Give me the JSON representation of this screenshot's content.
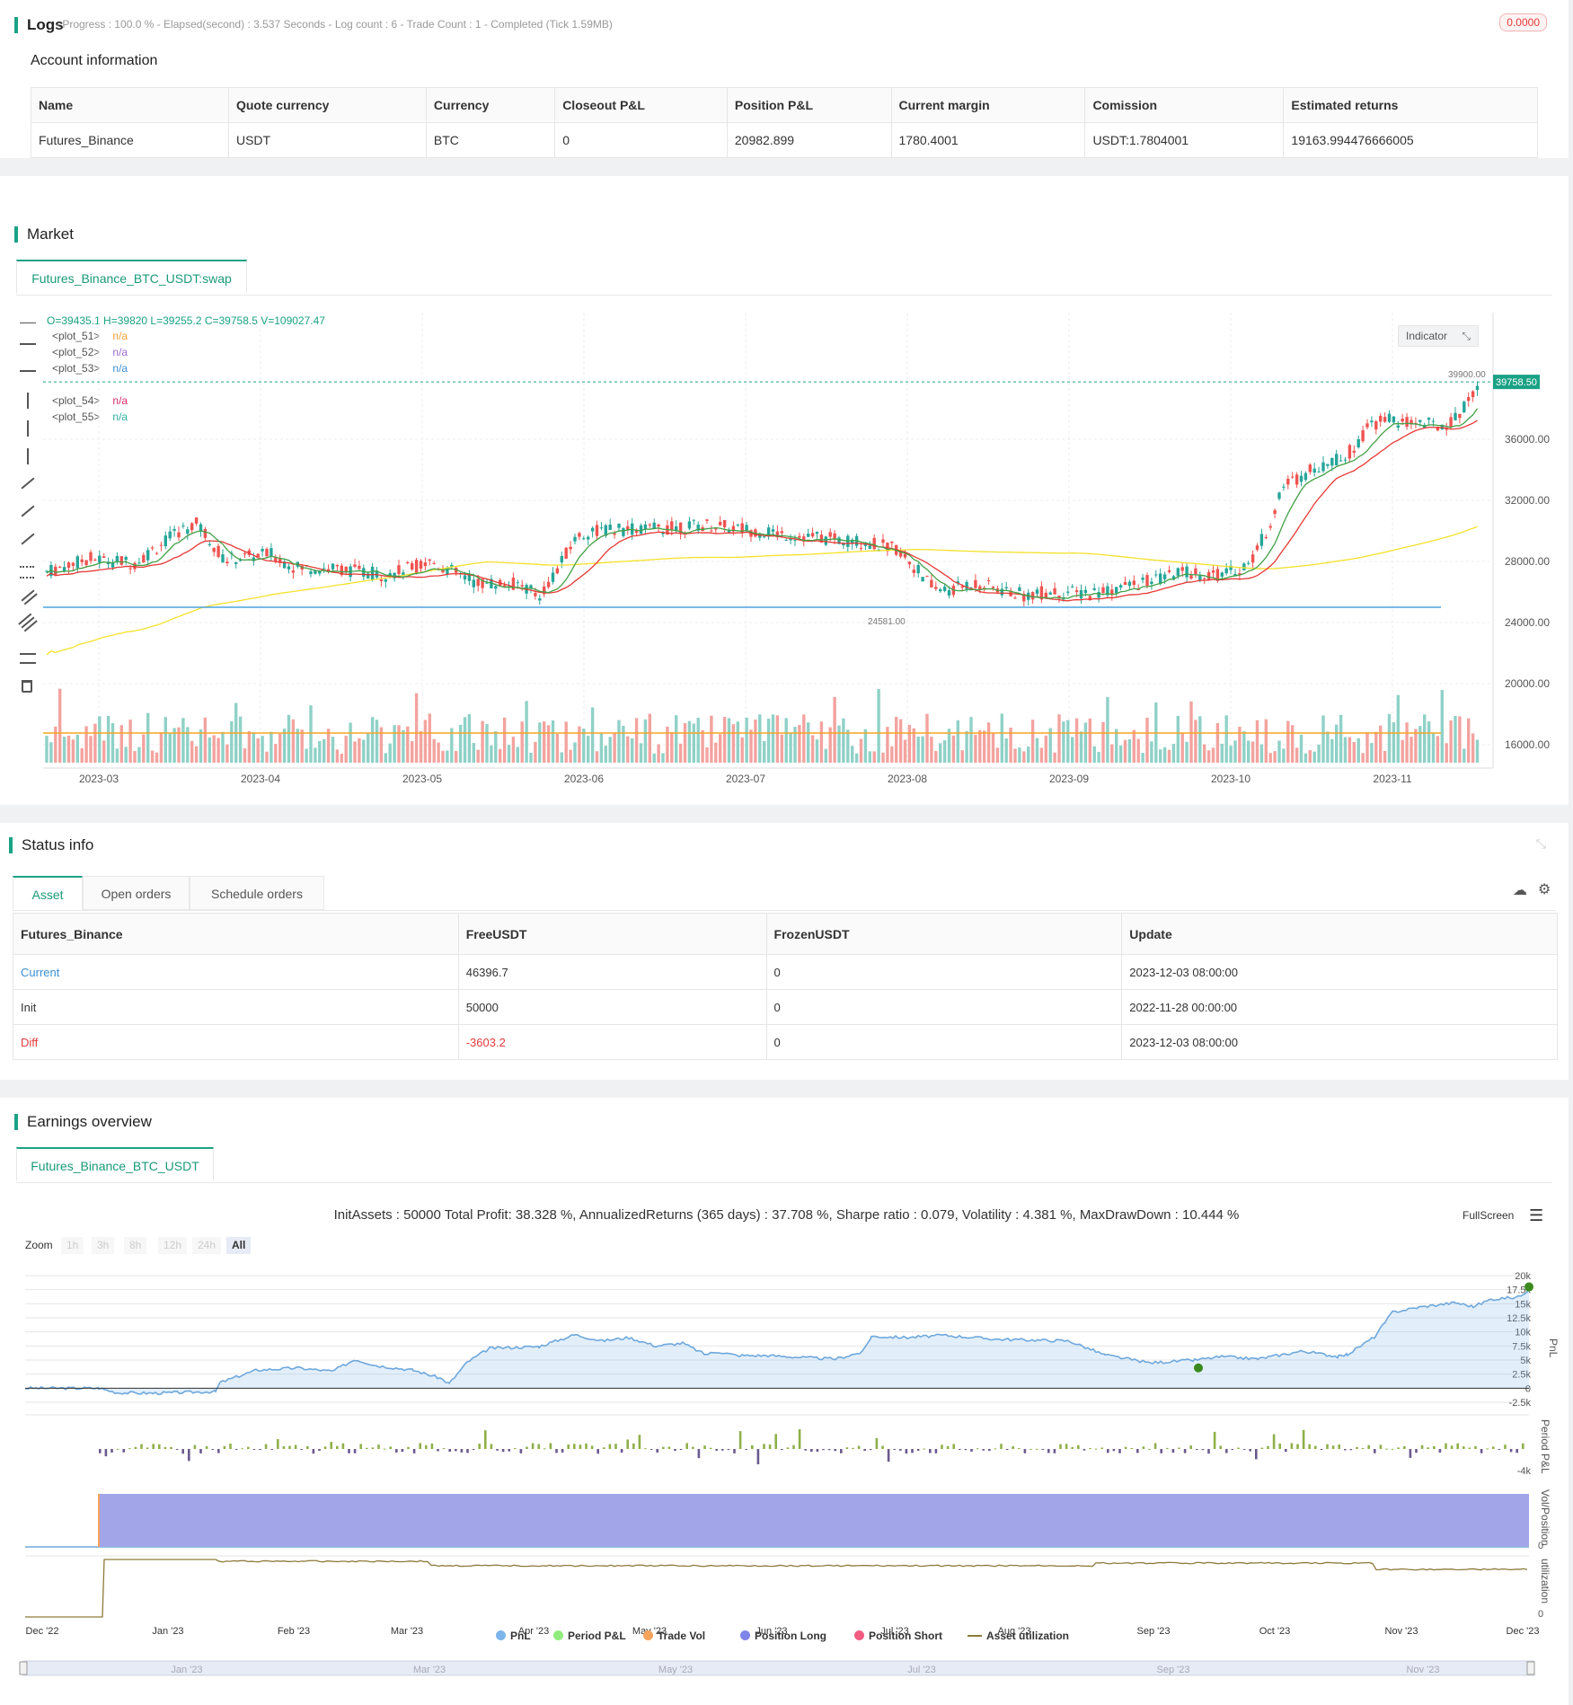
{
  "logs": {
    "title": "Logs",
    "status_line": "- Progress : 100.0 % - Elapsed(second) : 3.537  Seconds - Log count : 6 - Trade Count : 1 - Completed (Tick 1.59MB)",
    "badge": "0.0000"
  },
  "account": {
    "title": "Account information",
    "columns": [
      "Name",
      "Quote currency",
      "Currency",
      "Closeout P&L",
      "Position P&L",
      "Current margin",
      "Comission",
      "Estimated returns"
    ],
    "row": [
      "Futures_Binance",
      "USDT",
      "BTC",
      "0",
      "20982.899",
      "1780.4001",
      "USDT:1.7804001",
      "19163.994476666005"
    ]
  },
  "market": {
    "title": "Market",
    "tab": "Futures_Binance_BTC_USDT:swap",
    "ohlc": "O=39435.1 H=39820 L=39255.2 C=39758.5 V=109027.47",
    "plots": [
      {
        "name": "<plot_51>",
        "value": "n/a",
        "color": "#f0a33a"
      },
      {
        "name": "<plot_52>",
        "value": "n/a",
        "color": "#9c6bd0"
      },
      {
        "name": "<plot_53>",
        "value": "n/a",
        "color": "#3a8fd6"
      },
      {
        "name": "<plot_54>",
        "value": "n/a",
        "color": "#d62d6f"
      },
      {
        "name": "<plot_55>",
        "value": "n/a",
        "color": "#2bb0a0"
      }
    ],
    "indicator_button": "Indicator",
    "price_tag": "39758.50",
    "high_label": "39900.00",
    "low_label": "24581.00",
    "y_ticks": [
      "36000.00",
      "32000.00",
      "28000.00",
      "24000.00",
      "20000.00",
      "16000.00"
    ],
    "x_ticks": [
      "2023-03",
      "2023-04",
      "2023-05",
      "2023-06",
      "2023-07",
      "2023-08",
      "2023-09",
      "2023-10",
      "2023-11"
    ]
  },
  "status": {
    "title": "Status info",
    "tabs": [
      "Asset",
      "Open orders",
      "Schedule orders"
    ],
    "columns": [
      "Futures_Binance",
      "FreeUSDT",
      "FrozenUSDT",
      "Update"
    ],
    "rows": [
      {
        "label": "Current",
        "free": "46396.7",
        "frozen": "0",
        "update": "2023-12-03 08:00:00"
      },
      {
        "label": "Init",
        "free": "50000",
        "frozen": "0",
        "update": "2022-11-28 00:00:00"
      },
      {
        "label": "Diff",
        "free": "-3603.2",
        "frozen": "0",
        "update": "2023-12-03 08:00:00"
      }
    ]
  },
  "earnings": {
    "title": "Earnings overview",
    "tab": "Futures_Binance_BTC_USDT",
    "summary": "InitAssets : 50000 Total Profit: 38.328 %, AnnualizedReturns (365 days) : 37.708 %, Sharpe ratio : 0.079, Volatility : 4.381 %, MaxDrawDown : 10.444 %",
    "fullscreen": "FullScreen",
    "zoom_label": "Zoom",
    "zoom_buttons": [
      "1h",
      "3h",
      "8h",
      "12h",
      "24h",
      "All"
    ],
    "pnl_ticks": [
      "20k",
      "17.5k",
      "15k",
      "12.5k",
      "10k",
      "7.5k",
      "5k",
      "2.5k",
      "0",
      "-2.5k"
    ],
    "period_tick": "-4k",
    "axis_titles": [
      "PnL",
      "Period P&L",
      "Vol/Position",
      "utilization"
    ],
    "x_ticks": [
      "Dec '22",
      "Jan '23",
      "Feb '23",
      "Mar '23",
      "Apr '23",
      "May '23",
      "Jun '23",
      "Jul '23",
      "Aug '23",
      "Sep '23",
      "Oct '23",
      "Nov '23",
      "Dec '23"
    ],
    "nav_ticks": [
      "Jan '23",
      "Mar '23",
      "May '23",
      "Jul '23",
      "Sep '23",
      "Nov '23"
    ],
    "legend": [
      {
        "label": "PnL",
        "color": "#7cb5ec"
      },
      {
        "label": "Period P&L",
        "color": "#90ed7d"
      },
      {
        "label": "Trade Vol",
        "color": "#f7a35c"
      },
      {
        "label": "Position Long",
        "color": "#8085e9"
      },
      {
        "label": "Position Short",
        "color": "#f15c80"
      },
      {
        "label": "Asset utilization",
        "color": "#8d7a3a"
      }
    ],
    "zero_small": "0"
  }
}
